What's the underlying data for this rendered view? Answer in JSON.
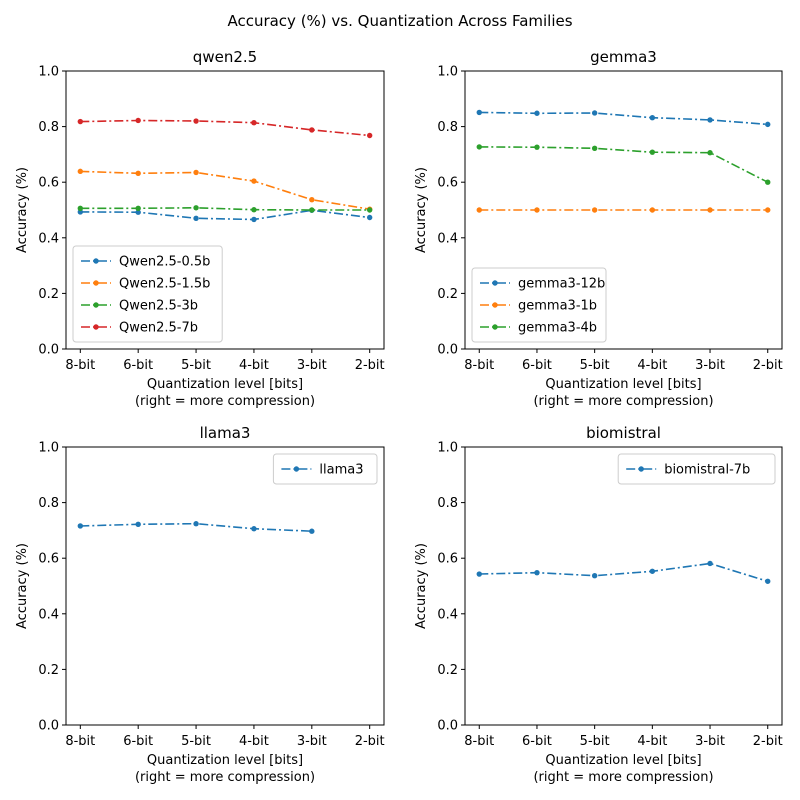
{
  "figure": {
    "title": "Accuracy (%) vs. Quantization Across Families"
  },
  "colors": {
    "blue": "#1f77b4",
    "orange": "#ff7f0e",
    "green": "#2ca02c",
    "red": "#d62728"
  },
  "chart_data": [
    {
      "type": "line",
      "title": "qwen2.5",
      "xlabel": "Quantization level [bits]",
      "xlabel2": "(right = more compression)",
      "ylabel": "Accuracy (%)",
      "categories": [
        "8-bit",
        "6-bit",
        "5-bit",
        "4-bit",
        "3-bit",
        "2-bit"
      ],
      "ylim": [
        0,
        1.0
      ],
      "yticks": [
        "0.0",
        "0.2",
        "0.4",
        "0.6",
        "0.8",
        "1.0"
      ],
      "legend_position": "lower-left",
      "grid": false,
      "series": [
        {
          "name": "Qwen2.5-0.5b",
          "color": "#1f77b4",
          "values": [
            0.493,
            0.492,
            0.47,
            0.466,
            0.499,
            0.473
          ]
        },
        {
          "name": "Qwen2.5-1.5b",
          "color": "#ff7f0e",
          "values": [
            0.639,
            0.632,
            0.635,
            0.604,
            0.537,
            0.503
          ]
        },
        {
          "name": "Qwen2.5-3b",
          "color": "#2ca02c",
          "values": [
            0.506,
            0.506,
            0.508,
            0.501,
            0.5,
            0.5
          ]
        },
        {
          "name": "Qwen2.5-7b",
          "color": "#d62728",
          "values": [
            0.818,
            0.822,
            0.82,
            0.814,
            0.788,
            0.768
          ]
        }
      ]
    },
    {
      "type": "line",
      "title": "gemma3",
      "xlabel": "Quantization level [bits]",
      "xlabel2": "(right = more compression)",
      "ylabel": "Accuracy (%)",
      "categories": [
        "8-bit",
        "6-bit",
        "5-bit",
        "4-bit",
        "3-bit",
        "2-bit"
      ],
      "ylim": [
        0,
        1.0
      ],
      "yticks": [
        "0.0",
        "0.2",
        "0.4",
        "0.6",
        "0.8",
        "1.0"
      ],
      "legend_position": "lower-left",
      "grid": false,
      "series": [
        {
          "name": "gemma3-12b",
          "color": "#1f77b4",
          "values": [
            0.851,
            0.848,
            0.849,
            0.832,
            0.824,
            0.808
          ]
        },
        {
          "name": "gemma3-1b",
          "color": "#ff7f0e",
          "values": [
            0.5,
            0.5,
            0.5,
            0.5,
            0.5,
            0.5
          ]
        },
        {
          "name": "gemma3-4b",
          "color": "#2ca02c",
          "values": [
            0.727,
            0.726,
            0.722,
            0.708,
            0.706,
            0.6
          ]
        }
      ]
    },
    {
      "type": "line",
      "title": "llama3",
      "xlabel": "Quantization level [bits]",
      "xlabel2": "(right = more compression)",
      "ylabel": "Accuracy (%)",
      "categories": [
        "8-bit",
        "6-bit",
        "5-bit",
        "4-bit",
        "3-bit",
        "2-bit"
      ],
      "ylim": [
        0,
        1.0
      ],
      "yticks": [
        "0.0",
        "0.2",
        "0.4",
        "0.6",
        "0.8",
        "1.0"
      ],
      "legend_position": "upper-right",
      "grid": false,
      "series": [
        {
          "name": "llama3",
          "color": "#1f77b4",
          "values": [
            0.716,
            0.722,
            0.724,
            0.706,
            0.697,
            null
          ]
        }
      ]
    },
    {
      "type": "line",
      "title": "biomistral",
      "xlabel": "Quantization level [bits]",
      "xlabel2": "(right = more compression)",
      "ylabel": "Accuracy (%)",
      "categories": [
        "8-bit",
        "6-bit",
        "5-bit",
        "4-bit",
        "3-bit",
        "2-bit"
      ],
      "ylim": [
        0,
        1.0
      ],
      "yticks": [
        "0.0",
        "0.2",
        "0.4",
        "0.6",
        "0.8",
        "1.0"
      ],
      "legend_position": "upper-right",
      "grid": false,
      "series": [
        {
          "name": "biomistral-7b",
          "color": "#1f77b4",
          "values": [
            0.543,
            0.548,
            0.537,
            0.553,
            0.581,
            0.517
          ]
        }
      ]
    }
  ]
}
